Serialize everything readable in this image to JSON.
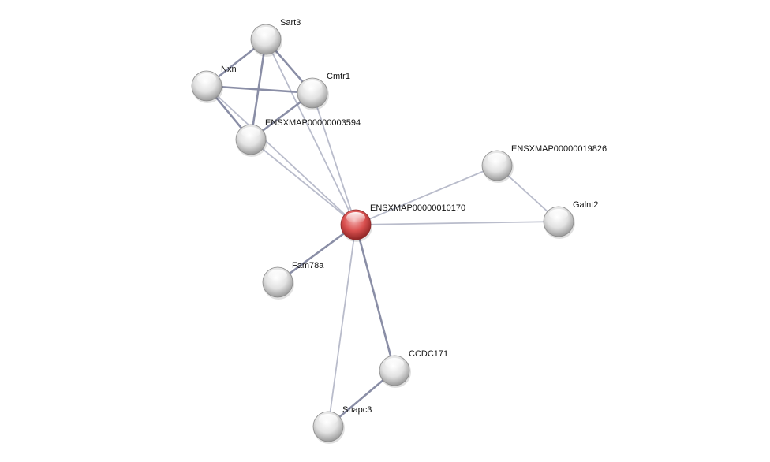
{
  "network": {
    "query_node": "ENSXMAP00000010170",
    "colors": {
      "query_node": "#d9504f",
      "other_node": "#e6e6e6",
      "edge_strong": "#8a8ea6",
      "edge_weak": "#b9bccb"
    },
    "nodes": [
      {
        "id": "Sart3",
        "label": "Sart3"
      },
      {
        "id": "Nxn",
        "label": "Nxn"
      },
      {
        "id": "Cmtr1",
        "label": "Cmtr1"
      },
      {
        "id": "ENSXMAP00000003594",
        "label": "ENSXMAP00000003594"
      },
      {
        "id": "ENSXMAP00000019826",
        "label": "ENSXMAP00000019826"
      },
      {
        "id": "ENSXMAP00000010170",
        "label": "ENSXMAP00000010170"
      },
      {
        "id": "Galnt2",
        "label": "Galnt2"
      },
      {
        "id": "Fam78a",
        "label": "Fam78a"
      },
      {
        "id": "CCDC171",
        "label": "CCDC171"
      },
      {
        "id": "Snapc3",
        "label": "Snapc3"
      }
    ],
    "edges": [
      {
        "source": "Sart3",
        "target": "Nxn",
        "strength": "strong"
      },
      {
        "source": "Sart3",
        "target": "Cmtr1",
        "strength": "strong"
      },
      {
        "source": "Sart3",
        "target": "ENSXMAP00000003594",
        "strength": "strong"
      },
      {
        "source": "Sart3",
        "target": "ENSXMAP00000010170",
        "strength": "weak"
      },
      {
        "source": "Nxn",
        "target": "Cmtr1",
        "strength": "strong"
      },
      {
        "source": "Nxn",
        "target": "ENSXMAP00000003594",
        "strength": "strong"
      },
      {
        "source": "Nxn",
        "target": "ENSXMAP00000010170",
        "strength": "weak"
      },
      {
        "source": "Cmtr1",
        "target": "ENSXMAP00000003594",
        "strength": "strong"
      },
      {
        "source": "Cmtr1",
        "target": "ENSXMAP00000010170",
        "strength": "weak"
      },
      {
        "source": "ENSXMAP00000003594",
        "target": "ENSXMAP00000010170",
        "strength": "weak"
      },
      {
        "source": "ENSXMAP00000019826",
        "target": "ENSXMAP00000010170",
        "strength": "weak"
      },
      {
        "source": "ENSXMAP00000019826",
        "target": "Galnt2",
        "strength": "weak"
      },
      {
        "source": "ENSXMAP00000010170",
        "target": "Galnt2",
        "strength": "weak"
      },
      {
        "source": "ENSXMAP00000010170",
        "target": "Fam78a",
        "strength": "strong"
      },
      {
        "source": "ENSXMAP00000010170",
        "target": "CCDC171",
        "strength": "strong"
      },
      {
        "source": "ENSXMAP00000010170",
        "target": "Snapc3",
        "strength": "weak"
      },
      {
        "source": "CCDC171",
        "target": "Snapc3",
        "strength": "strong"
      }
    ]
  }
}
